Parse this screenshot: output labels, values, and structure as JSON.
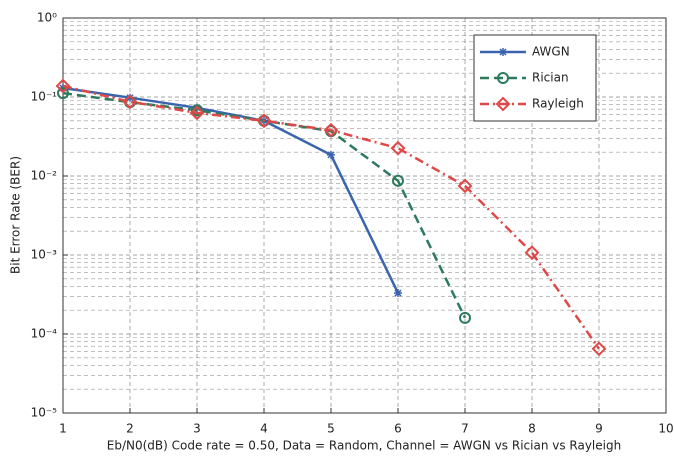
{
  "chart_data": {
    "type": "line",
    "xlabel": "Eb/N0(dB) Code rate = 0.50, Data = Random, Channel = AWGN vs Rician vs Rayleigh",
    "ylabel": "Bit Error Rate (BER)",
    "x": [
      1,
      2,
      3,
      4,
      5,
      6,
      7,
      8,
      9
    ],
    "xlim": [
      1,
      10
    ],
    "xticks": [
      1,
      2,
      3,
      4,
      5,
      6,
      7,
      8,
      9,
      10
    ],
    "yscale": "log",
    "ylim": [
      1e-05,
      1
    ],
    "yticks": [
      {
        "value": 1e-05,
        "label": "10⁻⁵"
      },
      {
        "value": 0.0001,
        "label": "10⁻⁴"
      },
      {
        "value": 0.001,
        "label": "10⁻³"
      },
      {
        "value": 0.01,
        "label": "10⁻²"
      },
      {
        "value": 0.1,
        "label": "10⁻¹"
      },
      {
        "value": 1,
        "label": "10⁰"
      }
    ],
    "grid": true,
    "legend": "upper right",
    "series": [
      {
        "name": "AWGN",
        "color": "#3a64b0",
        "linestyle": "solid",
        "marker": "star",
        "values": [
          0.13,
          0.098,
          0.073,
          0.05,
          0.0185,
          0.00033,
          null,
          null,
          null
        ]
      },
      {
        "name": "Rician",
        "color": "#2e7a5c",
        "linestyle": "dashed",
        "marker": "circle",
        "values": [
          0.112,
          0.086,
          0.068,
          0.05,
          0.037,
          0.0087,
          0.00016,
          null,
          null
        ]
      },
      {
        "name": "Rayleigh",
        "color": "#e04848",
        "linestyle": "dashdot",
        "marker": "diamond",
        "values": [
          0.138,
          0.087,
          0.063,
          0.05,
          0.038,
          0.0225,
          0.0075,
          0.00107,
          6.5e-05
        ]
      }
    ]
  }
}
